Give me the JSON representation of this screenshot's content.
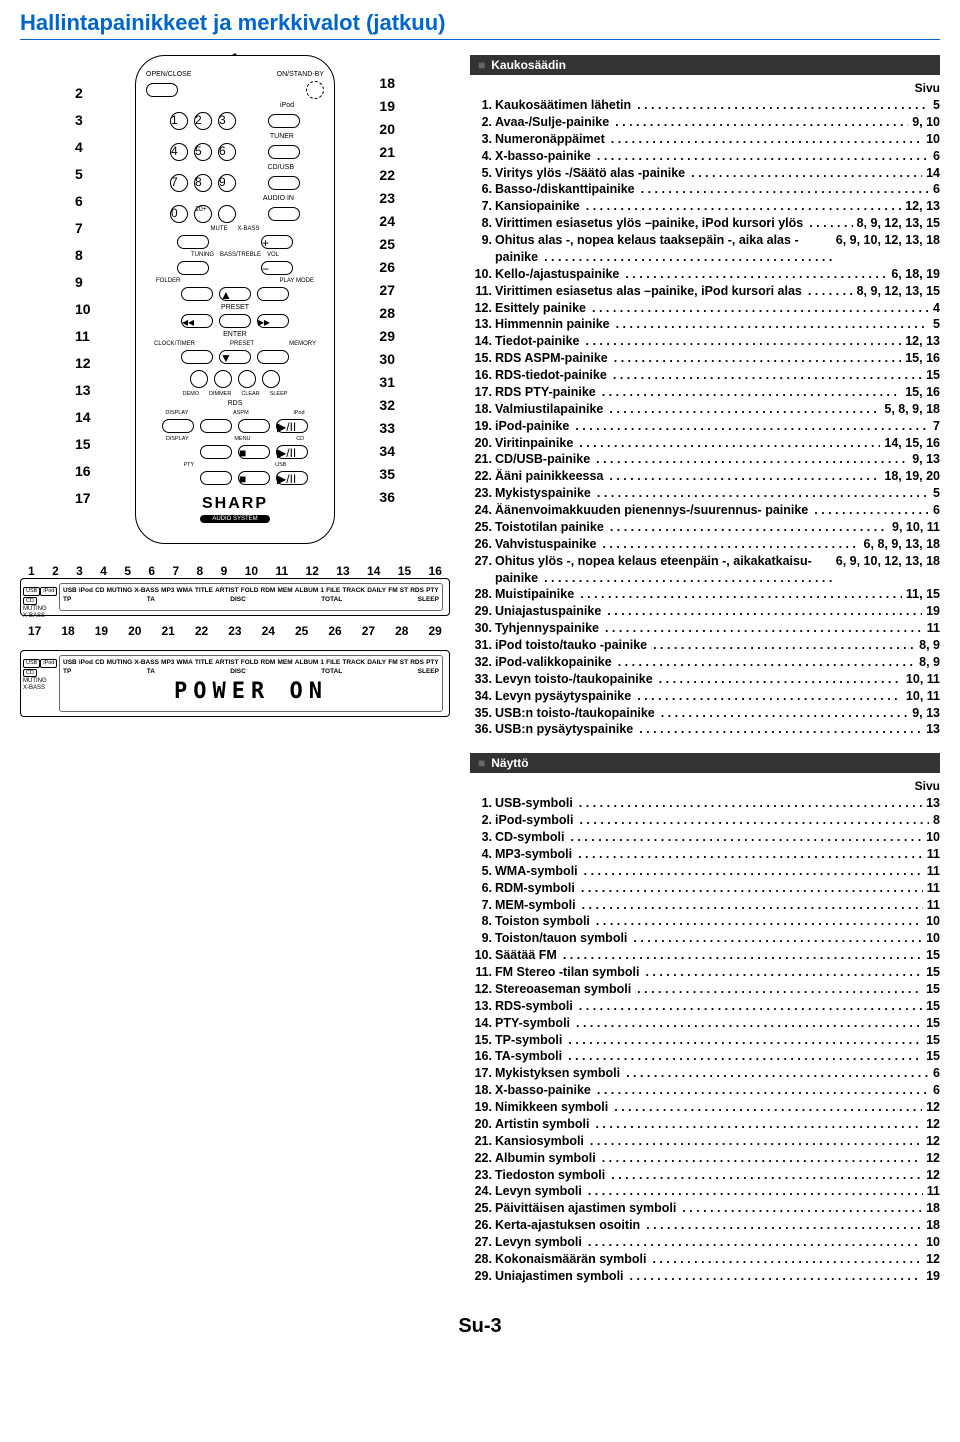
{
  "title": "Hallintapainikkeet ja merkkivalot (jatkuu)",
  "footer": "Su-3",
  "sections": {
    "remote": {
      "head": "Kaukosäädin",
      "pageLabel": "Sivu"
    },
    "display": {
      "head": "Näyttö",
      "pageLabel": "Sivu"
    }
  },
  "remote_items": [
    {
      "n": "1.",
      "d": "Kaukosäätimen lähetin",
      "p": "5"
    },
    {
      "n": "2.",
      "d": "Avaa-/Sulje-painike",
      "p": "9, 10"
    },
    {
      "n": "3.",
      "d": "Numeronäppäimet",
      "p": "10"
    },
    {
      "n": "4.",
      "d": "X-basso-painike",
      "p": "6"
    },
    {
      "n": "5.",
      "d": "Viritys ylös -/Säätö alas -painike",
      "p": "14"
    },
    {
      "n": "6.",
      "d": "Basso-/diskanttipainike",
      "p": "6"
    },
    {
      "n": "7.",
      "d": "Kansiopainike",
      "p": "12, 13"
    },
    {
      "n": "8.",
      "d": "Virittimen esiasetus ylös –painike, iPod kursori ylös",
      "p": "8, 9, 12, 13, 15"
    },
    {
      "n": "9.",
      "d": "Ohitus alas -, nopea kelaus taaksepäin -, aika alas -painike",
      "p": "6, 9, 10, 12, 13, 18"
    },
    {
      "n": "10.",
      "d": "Kello-/ajastuspainike",
      "p": "6, 18, 19"
    },
    {
      "n": "11.",
      "d": "Virittimen esiasetus alas –painike, iPod kursori alas",
      "p": "8, 9, 12, 13, 15"
    },
    {
      "n": "12.",
      "d": "Esittely painike",
      "p": "4"
    },
    {
      "n": "13.",
      "d": "Himmennin painike",
      "p": "5"
    },
    {
      "n": "14.",
      "d": "Tiedot-painike",
      "p": "12, 13"
    },
    {
      "n": "15.",
      "d": "RDS ASPM-painike",
      "p": "15, 16"
    },
    {
      "n": "16.",
      "d": "RDS-tiedot-painike",
      "p": "15"
    },
    {
      "n": "17.",
      "d": "RDS PTY-painike",
      "p": "15, 16"
    },
    {
      "n": "18.",
      "d": "Valmiustilapainike",
      "p": "5, 8, 9, 18"
    },
    {
      "n": "19.",
      "d": "iPod-painike",
      "p": "7"
    },
    {
      "n": "20.",
      "d": "Viritinpainike",
      "p": "14, 15, 16"
    },
    {
      "n": "21.",
      "d": "CD/USB-painike",
      "p": "9, 13"
    },
    {
      "n": "22.",
      "d": "Ääni painikkeessa",
      "p": "18, 19, 20"
    },
    {
      "n": "23.",
      "d": "Mykistyspainike",
      "p": "5"
    },
    {
      "n": "24.",
      "d": "Äänenvoimakkuuden pienennys-/suurennus- painike",
      "p": "6"
    },
    {
      "n": "25.",
      "d": "Toistotilan painike",
      "p": "9, 10, 11"
    },
    {
      "n": "26.",
      "d": "Vahvistuspainike",
      "p": "6, 8, 9, 13, 18"
    },
    {
      "n": "27.",
      "d": "Ohitus ylös -, nopea kelaus eteenpäin -, aikakatkaisu-painike",
      "p": "6, 9, 10, 12, 13, 18"
    },
    {
      "n": "28.",
      "d": "Muistipainike",
      "p": "11, 15"
    },
    {
      "n": "29.",
      "d": "Uniajastuspainike",
      "p": "19"
    },
    {
      "n": "30.",
      "d": "Tyhjennyspainike",
      "p": "11"
    },
    {
      "n": "31.",
      "d": "iPod toisto/tauko -painike",
      "p": "8, 9"
    },
    {
      "n": "32.",
      "d": "iPod-valikkopainike",
      "p": "8, 9"
    },
    {
      "n": "33.",
      "d": "Levyn toisto-/taukopainike",
      "p": "10, 11"
    },
    {
      "n": "34.",
      "d": "Levyn pysäytyspainike",
      "p": "10, 11"
    },
    {
      "n": "35.",
      "d": "USB:n toisto-/taukopainike",
      "p": "9, 13"
    },
    {
      "n": "36.",
      "d": "USB:n pysäytyspainike",
      "p": "13"
    }
  ],
  "display_items": [
    {
      "n": "1.",
      "d": "USB-symboli",
      "p": "13"
    },
    {
      "n": "2.",
      "d": "iPod-symboli",
      "p": "8"
    },
    {
      "n": "3.",
      "d": "CD-symboli",
      "p": "10"
    },
    {
      "n": "4.",
      "d": "MP3-symboli",
      "p": "11"
    },
    {
      "n": "5.",
      "d": "WMA-symboli",
      "p": "11"
    },
    {
      "n": "6.",
      "d": "RDM-symboli",
      "p": "11"
    },
    {
      "n": "7.",
      "d": "MEM-symboli",
      "p": "11"
    },
    {
      "n": "8.",
      "d": "Toiston symboli",
      "p": "10"
    },
    {
      "n": "9.",
      "d": "Toiston/tauon symboli",
      "p": "10"
    },
    {
      "n": "10.",
      "d": "Säätää FM",
      "p": "15"
    },
    {
      "n": "11.",
      "d": "FM Stereo -tilan symboli",
      "p": "15"
    },
    {
      "n": "12.",
      "d": "Stereoaseman symboli",
      "p": "15"
    },
    {
      "n": "13.",
      "d": "RDS-symboli",
      "p": "15"
    },
    {
      "n": "14.",
      "d": "PTY-symboli",
      "p": "15"
    },
    {
      "n": "15.",
      "d": "TP-symboli",
      "p": "15"
    },
    {
      "n": "16.",
      "d": "TA-symboli",
      "p": "15"
    },
    {
      "n": "17.",
      "d": "Mykistyksen symboli",
      "p": "6"
    },
    {
      "n": "18.",
      "d": "X-basso-painike",
      "p": "6"
    },
    {
      "n": "19.",
      "d": "Nimikkeen symboli",
      "p": "12"
    },
    {
      "n": "20.",
      "d": "Artistin symboli",
      "p": "12"
    },
    {
      "n": "21.",
      "d": "Kansiosymboli",
      "p": "12"
    },
    {
      "n": "22.",
      "d": "Albumin symboli",
      "p": "12"
    },
    {
      "n": "23.",
      "d": "Tiedoston symboli",
      "p": "12"
    },
    {
      "n": "24.",
      "d": "Levyn symboli",
      "p": "11"
    },
    {
      "n": "25.",
      "d": "Päivittäisen ajastimen symboli",
      "p": "18"
    },
    {
      "n": "26.",
      "d": "Kerta-ajastuksen osoitin",
      "p": "18"
    },
    {
      "n": "27.",
      "d": "Levyn symboli",
      "p": "10"
    },
    {
      "n": "28.",
      "d": "Kokonaismäärän symboli",
      "p": "12"
    },
    {
      "n": "29.",
      "d": "Uniajastimen symboli",
      "p": "19"
    }
  ],
  "remote_diagram": {
    "left_nums": [
      "2",
      "3",
      "4",
      "5",
      "6",
      "7",
      "8",
      "9",
      "10",
      "11",
      "12",
      "13",
      "14",
      "15",
      "16",
      "17"
    ],
    "right_nums": [
      "18",
      "19",
      "20",
      "21",
      "22",
      "23",
      "24",
      "25",
      "26",
      "27",
      "28",
      "29",
      "30",
      "31",
      "32",
      "33",
      "34",
      "35",
      "36"
    ],
    "top_num": "1",
    "brand": "SHARP",
    "sub": "AUDIO SYSTEM",
    "btn_labels": {
      "open": "OPEN/CLOSE",
      "standby": "ON/STAND-BY",
      "ipod": "iPod",
      "tuner": "TUNER",
      "cdusb": "CD/USB",
      "audioin": "AUDIO IN",
      "mute": "MUTE",
      "xbass": "X-BASS",
      "tuning": "TUNING",
      "basstreble": "BASS/TREBLE",
      "vol": "VOL",
      "folder": "FOLDER",
      "playmode": "PLAY MODE",
      "preset": "PRESET",
      "enter": "ENTER",
      "clocktimer": "CLOCK/TIMER",
      "memory": "MEMORY",
      "demo": "DEMO",
      "dimmer": "DIMMER",
      "clear": "CLEAR",
      "sleep": "SLEEP",
      "rds": "RDS",
      "display": "DISPLAY",
      "aspm": "ASPM",
      "menu": "MENU",
      "cd": "CD",
      "pty": "PTY",
      "usb": "USB"
    }
  },
  "display_diagram": {
    "top_nums": [
      "1",
      "2",
      "3",
      "4",
      "5",
      "6",
      "7",
      "8",
      "9",
      "10",
      "11",
      "12",
      "13",
      "14",
      "15",
      "16"
    ],
    "bot_nums": [
      "17",
      "18",
      "19",
      "20",
      "21",
      "22",
      "23",
      "24",
      "25",
      "26",
      "27",
      "28",
      "29"
    ],
    "labels": [
      "USB",
      "iPod",
      "CD",
      "MUTING",
      "X-BASS",
      "MP3",
      "WMA",
      "TITLE",
      "ARTIST",
      "FOLD",
      "RDM",
      "MEM",
      "ALBUM",
      "1",
      "FILE",
      "TRACK",
      "DAILY",
      "FM",
      "ST",
      "RDS",
      "PTY",
      "TP",
      "TA",
      "DISC",
      "TOTAL",
      "SLEEP"
    ],
    "power": "POWER ON"
  }
}
